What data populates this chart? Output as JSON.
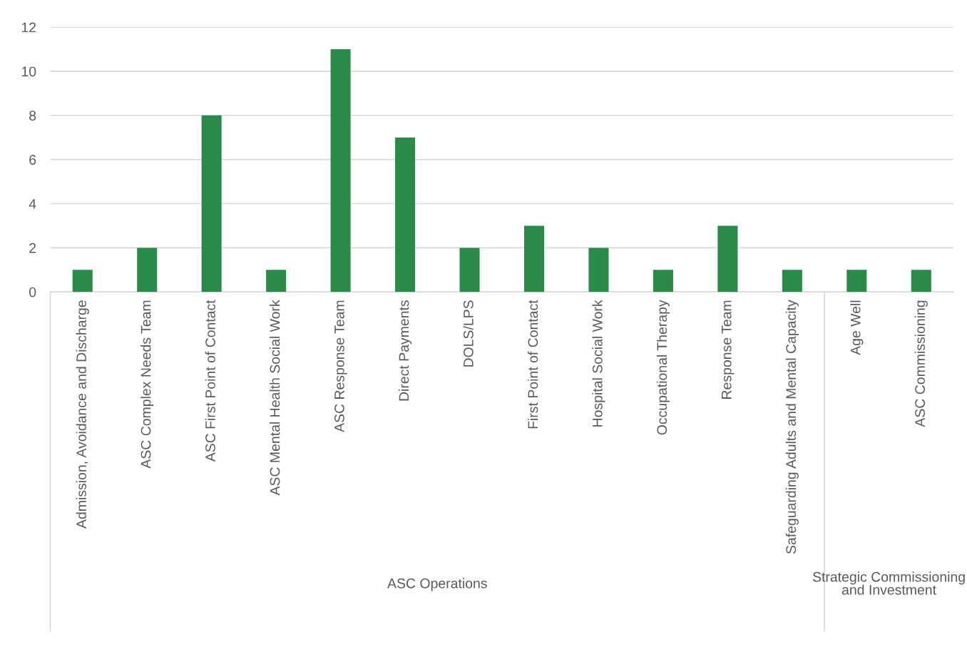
{
  "chart_data": {
    "type": "bar",
    "categories": [
      "Admission, Avoidance and Discharge",
      "ASC Complex Needs Team",
      "ASC First Point of Contact",
      "ASC Mental Health Social Work",
      "ASC Response Team",
      "Direct Payments",
      "DOLS/LPS",
      "First Point of Contact",
      "Hospital Social Work",
      "Occupational Therapy",
      "Response Team",
      "Safeguarding Adults and Mental Capacity",
      "Age Well",
      "ASC Commissioning"
    ],
    "values": [
      1,
      2,
      8,
      1,
      11,
      7,
      2,
      3,
      2,
      1,
      3,
      1,
      1,
      1
    ],
    "color": "#2a8a4a",
    "ylim": [
      0,
      12
    ],
    "yticks": [
      0,
      2,
      4,
      6,
      8,
      10,
      12
    ],
    "grid": "y",
    "annotations": [
      "ASC Operations",
      "Strategic Commissioning and Investment"
    ]
  }
}
